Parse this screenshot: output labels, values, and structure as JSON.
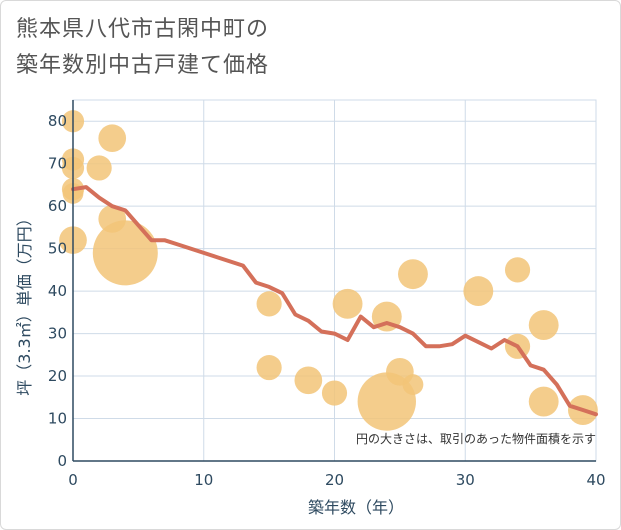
{
  "chart_data": {
    "type": "scatter",
    "title_lines": [
      "熊本県八代市古閑中町の",
      "築年数別中古戸建て価格"
    ],
    "xlabel": "築年数（年）",
    "ylabel": "坪（3.3㎡）単価（万円）",
    "xlim": [
      0,
      40
    ],
    "ylim": [
      0,
      85
    ],
    "xticks": [
      "0",
      "10",
      "20",
      "30",
      "40"
    ],
    "yticks": [
      "0",
      "10",
      "20",
      "30",
      "40",
      "50",
      "60",
      "70",
      "80"
    ],
    "grid": true,
    "note": "円の大きさは、取引のあった物件面積を示す",
    "colors": {
      "bubble": "#f2c478",
      "line": "#d4705a",
      "grid": "#cfdbe8",
      "axis": "#2e4a60"
    },
    "bubbles": [
      {
        "x": 0,
        "y": 80,
        "size": 1
      },
      {
        "x": 0,
        "y": 71,
        "size": 1
      },
      {
        "x": 0,
        "y": 69,
        "size": 1
      },
      {
        "x": 0,
        "y": 64,
        "size": 1
      },
      {
        "x": 0,
        "y": 63,
        "size": 0.8
      },
      {
        "x": 0,
        "y": 52,
        "size": 2
      },
      {
        "x": 2,
        "y": 69,
        "size": 1.5
      },
      {
        "x": 3,
        "y": 76,
        "size": 2
      },
      {
        "x": 3,
        "y": 57,
        "size": 2
      },
      {
        "x": 4,
        "y": 49,
        "size": 18
      },
      {
        "x": 15,
        "y": 37,
        "size": 1.5
      },
      {
        "x": 15,
        "y": 22,
        "size": 1.5
      },
      {
        "x": 18,
        "y": 19,
        "size": 2
      },
      {
        "x": 20,
        "y": 16,
        "size": 1.5
      },
      {
        "x": 21,
        "y": 37,
        "size": 2.5
      },
      {
        "x": 24,
        "y": 34,
        "size": 2.5
      },
      {
        "x": 24,
        "y": 14,
        "size": 14
      },
      {
        "x": 25,
        "y": 21,
        "size": 2
      },
      {
        "x": 26,
        "y": 18,
        "size": 0.8
      },
      {
        "x": 26,
        "y": 44,
        "size": 2.5
      },
      {
        "x": 31,
        "y": 40,
        "size": 2.5
      },
      {
        "x": 34,
        "y": 45,
        "size": 1.5
      },
      {
        "x": 34,
        "y": 27,
        "size": 1.5
      },
      {
        "x": 36,
        "y": 32,
        "size": 2.5
      },
      {
        "x": 36,
        "y": 14,
        "size": 2.5
      },
      {
        "x": 39,
        "y": 12,
        "size": 2.5
      }
    ],
    "trend": {
      "x": [
        0,
        1,
        2,
        3,
        4,
        5,
        6,
        7,
        8,
        9,
        10,
        11,
        12,
        13,
        14,
        15,
        16,
        17,
        18,
        19,
        20,
        21,
        22,
        23,
        24,
        25,
        26,
        27,
        28,
        29,
        30,
        31,
        32,
        33,
        34,
        35,
        36,
        37,
        38,
        39,
        40
      ],
      "y": [
        64,
        64.5,
        62,
        60,
        59,
        55.5,
        52,
        52,
        51,
        50,
        49,
        48,
        47,
        46,
        42,
        41,
        39.5,
        34.5,
        33,
        30.5,
        30,
        28.5,
        34,
        31.5,
        32.5,
        31.5,
        30,
        27,
        27,
        27.5,
        29.5,
        28,
        26.5,
        28.5,
        27,
        22.5,
        21.5,
        18,
        13,
        12,
        11
      ]
    }
  }
}
